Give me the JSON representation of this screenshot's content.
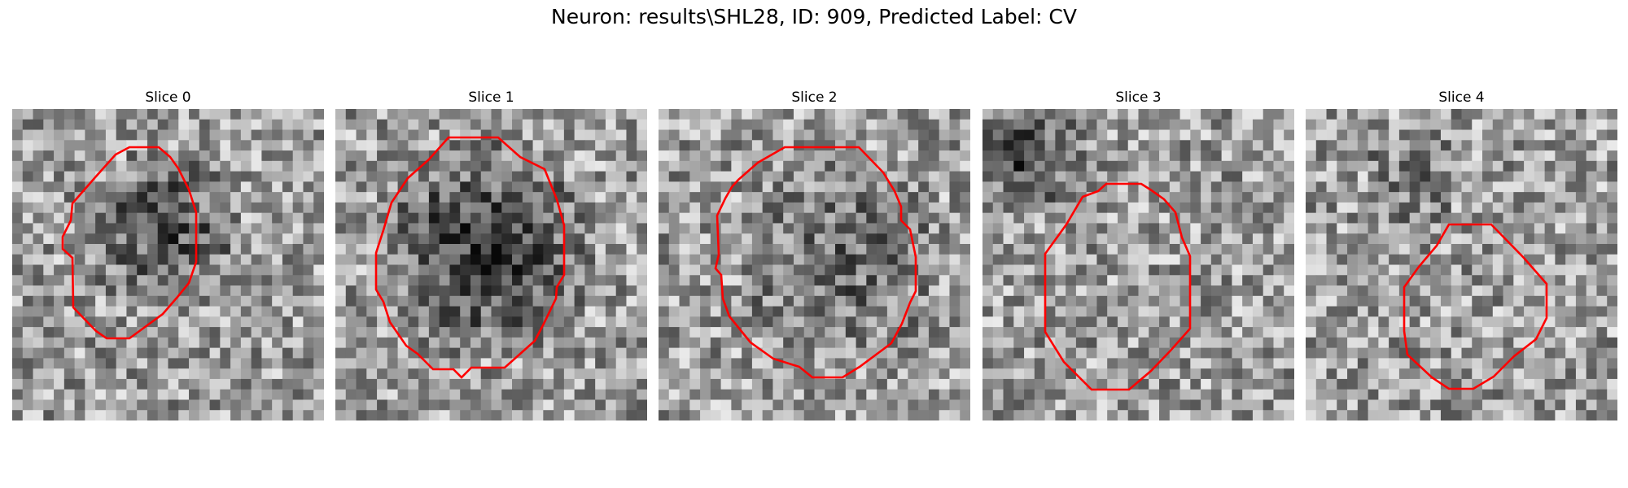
{
  "figure": {
    "title": "Neuron: results\\SHL28, ID: 909, Predicted Label: CV"
  },
  "contour_color": "#ff0000",
  "colormap": "gray",
  "panels": [
    {
      "title": "Slice 0"
    },
    {
      "title": "Slice 1"
    },
    {
      "title": "Slice 2"
    },
    {
      "title": "Slice 3"
    },
    {
      "title": "Slice 4"
    }
  ]
}
